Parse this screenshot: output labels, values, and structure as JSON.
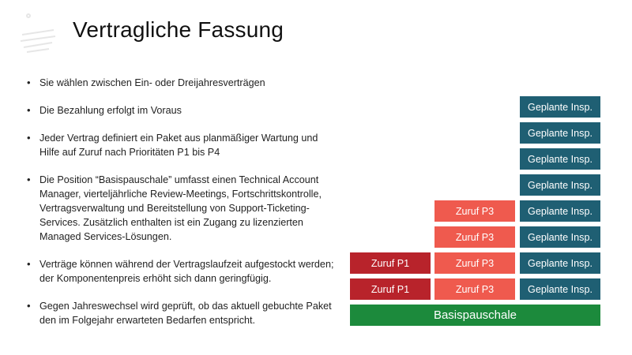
{
  "slide": {
    "title": "Vertragliche Fassung",
    "bullets": [
      "Sie wählen zwischen Ein- oder Dreijahresverträgen",
      "Die Bezahlung erfolgt im Voraus",
      "Jeder Vertrag definiert ein Paket aus planmäßiger Wartung und Hilfe auf Zuruf nach Prioritäten P1 bis P4",
      "Die Position “Basispauschale” umfasst einen Technical Account Manager, vierteljährliche Review-Meetings, Fortschrittskontrolle, Vertragsverwaltung und Bereitstellung von Support-Ticketing-Services. Zusätzlich enthalten ist ein Zugang zu lizenzierten Managed Services-Lösungen.",
      "Verträge können während der Vertragslaufzeit aufgestockt werden; der Komponentenpreis erhöht sich dann geringfügig.",
      "Gegen Jahreswechsel wird geprüft, ob das aktuell gebuchte Paket den im Folgejahr erwarteten Bedarfen entspricht."
    ]
  },
  "diagram": {
    "colors": {
      "geplante": "#1f5f73",
      "p3": "#ef5a4e",
      "p1": "#b8232b",
      "basis": "#1c8a3c"
    },
    "geplante_label": "Geplante Insp.",
    "p3_label": "Zuruf P3",
    "p1_label": "Zuruf P1",
    "basis_label": "Basispauschale"
  }
}
